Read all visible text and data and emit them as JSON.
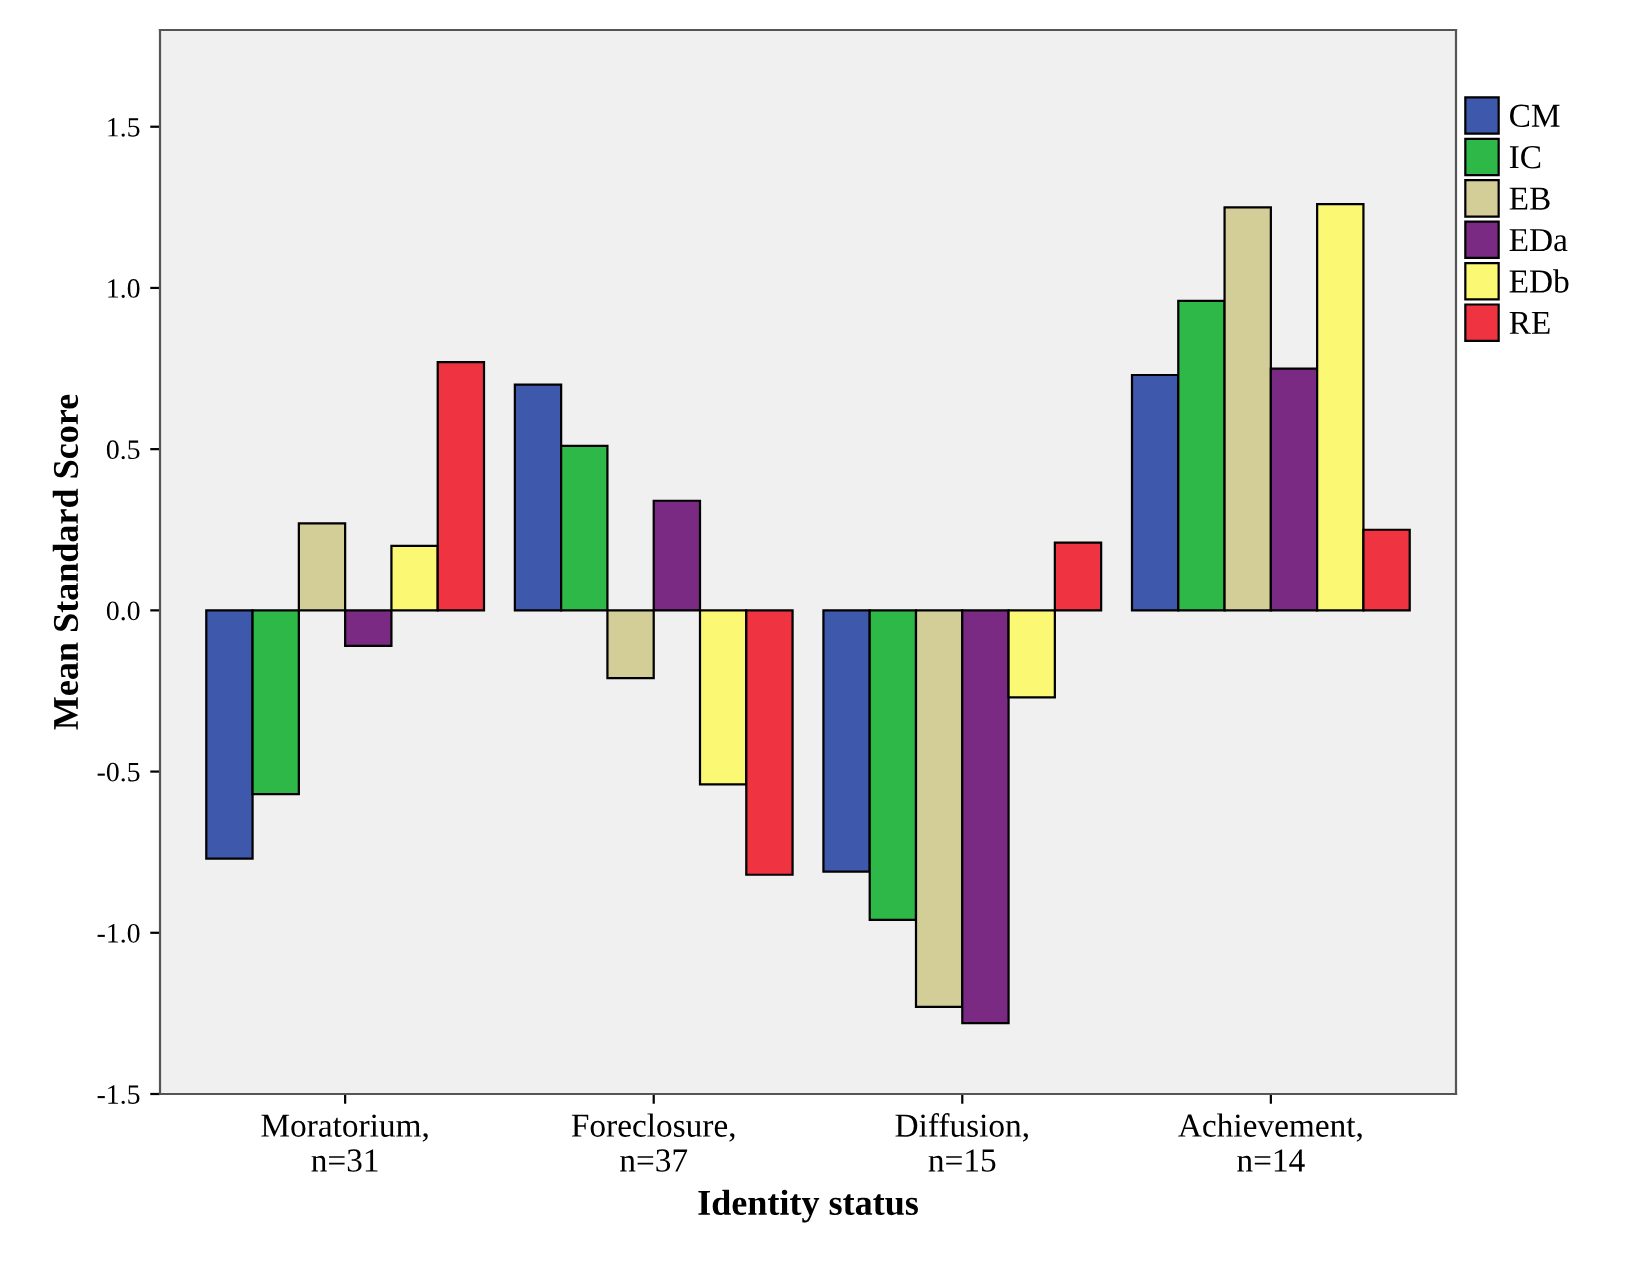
{
  "chart_data": {
    "type": "bar",
    "xlabel": "Identity status",
    "ylabel": "Mean Standard Score",
    "categories": [
      "Moratorium,\nn=31",
      "Foreclosure,\nn=37",
      "Diffusion,\nn=15",
      "Achievement,\nn=14"
    ],
    "series": [
      {
        "name": "CM",
        "color": "#3e58ac",
        "values": [
          -0.77,
          0.7,
          -0.81,
          0.73
        ]
      },
      {
        "name": "IC",
        "color": "#2eb848",
        "values": [
          -0.57,
          0.51,
          -0.96,
          0.96
        ]
      },
      {
        "name": "EB",
        "color": "#d3ce97",
        "values": [
          0.27,
          -0.21,
          -1.23,
          1.25
        ]
      },
      {
        "name": "EDa",
        "color": "#7b2a83",
        "values": [
          -0.11,
          0.34,
          -1.28,
          0.75
        ]
      },
      {
        "name": "EDb",
        "color": "#fbf873",
        "values": [
          0.2,
          -0.54,
          -0.27,
          1.26
        ]
      },
      {
        "name": "RE",
        "color": "#ef3340",
        "values": [
          0.77,
          -0.82,
          0.21,
          0.25
        ]
      }
    ],
    "ylim": [
      -1.5,
      1.8
    ],
    "yticks": [
      {
        "value": -1.5,
        "label": "-1.5"
      },
      {
        "value": -1.0,
        "label": "-1.0"
      },
      {
        "value": -0.5,
        "label": "-0.5"
      },
      {
        "value": 0.0,
        "label": "0.0"
      },
      {
        "value": 0.5,
        "label": "0.5"
      },
      {
        "value": 1.0,
        "label": "1.0"
      },
      {
        "value": 1.5,
        "label": "1.5"
      }
    ],
    "grid": false,
    "legend": "top right"
  }
}
